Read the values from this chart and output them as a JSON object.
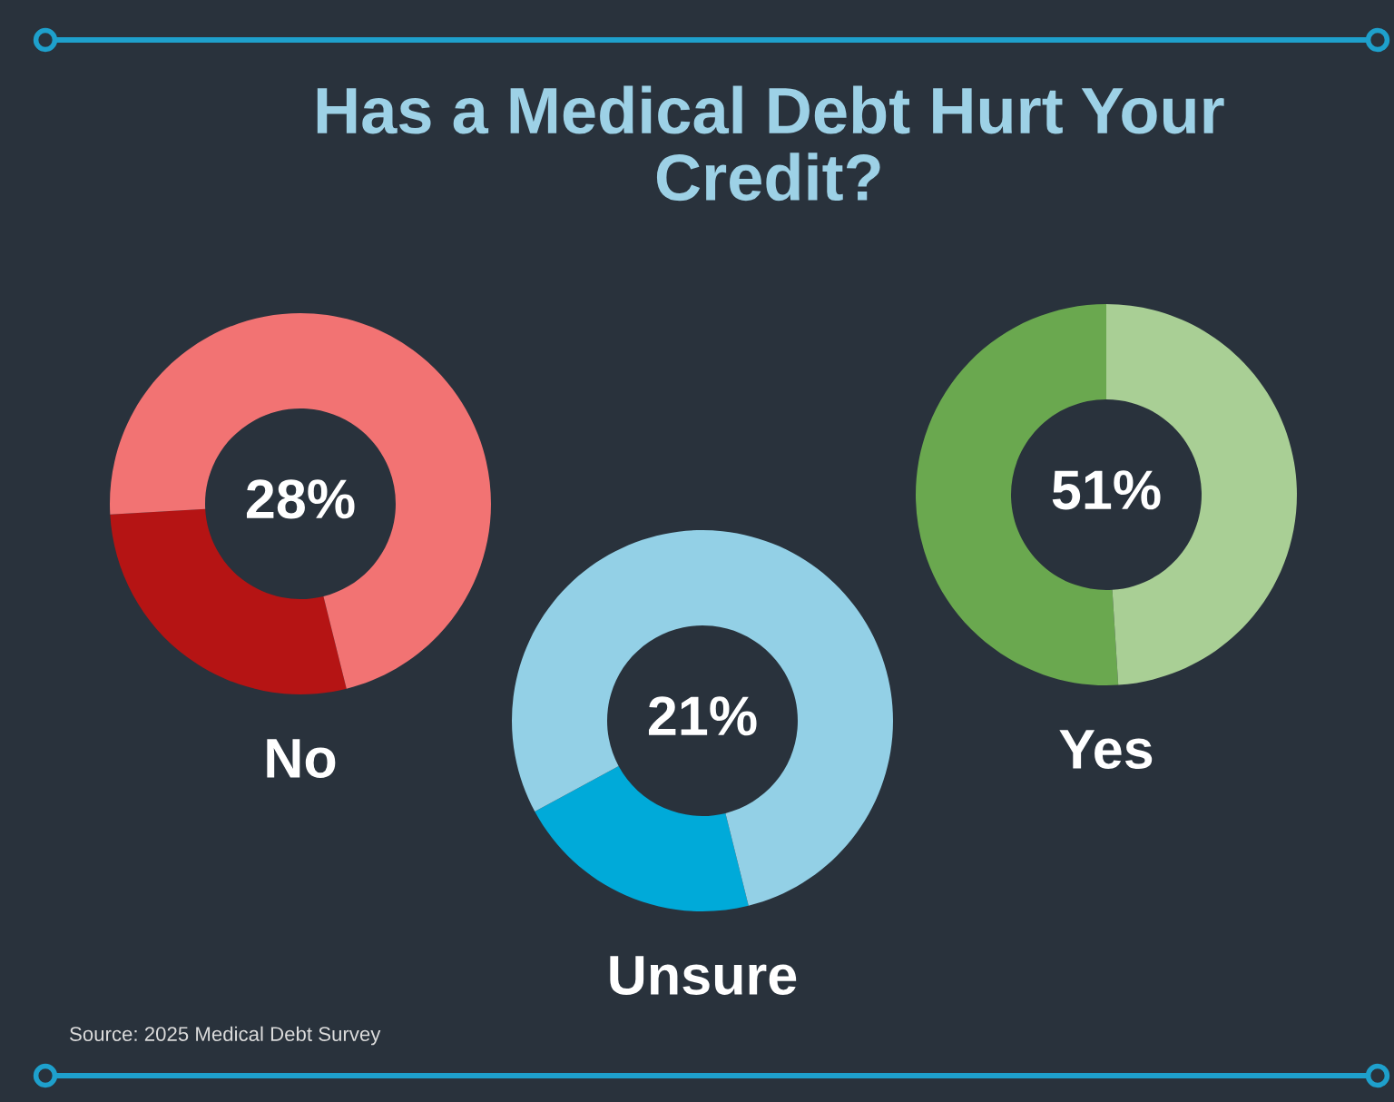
{
  "chart_data": [
    {
      "type": "donut",
      "title": "Has a Medical Debt Hurt Your Credit?",
      "categories": [
        "No",
        null
      ],
      "values": [
        28,
        72
      ],
      "colors": [
        "#b51414",
        "#f27373"
      ],
      "annotations": [
        "28%"
      ]
    },
    {
      "type": "donut",
      "categories": [
        "Unsure",
        null
      ],
      "values": [
        21,
        79
      ],
      "colors": [
        "#00aad9",
        "#93d0e6"
      ],
      "annotations": [
        "21%"
      ]
    },
    {
      "type": "donut",
      "categories": [
        "Yes",
        null
      ],
      "values": [
        51,
        49
      ],
      "colors": [
        "#6aa84f",
        "#a9cf95"
      ],
      "annotations": [
        "51%",
        "Source: 2025 Medical Debt Survey"
      ]
    }
  ]
}
